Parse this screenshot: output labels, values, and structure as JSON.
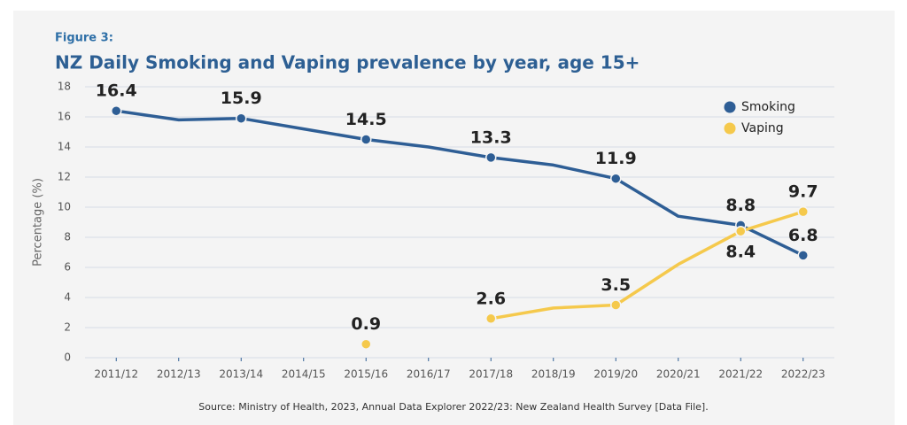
{
  "figure_label": "Figure 3:",
  "chart_data": {
    "type": "line",
    "title": "NZ Daily Smoking and Vaping prevalence by year, age 15+",
    "y_label": "Percentage (%)",
    "source": "Source: Ministry of Health, 2023, Annual Data Explorer 2022/23: New Zealand Health Survey [Data File].",
    "categories": [
      "2011/12",
      "2012/13",
      "2013/14",
      "2014/15",
      "2015/16",
      "2016/17",
      "2017/18",
      "2018/19",
      "2019/20",
      "2020/21",
      "2021/22",
      "2022/23"
    ],
    "series": [
      {
        "name": "Smoking",
        "color": "#2e5e95",
        "values": [
          16.4,
          15.8,
          15.9,
          15.2,
          14.5,
          14.0,
          13.3,
          12.8,
          11.9,
          9.4,
          8.8,
          6.8
        ],
        "value_labels": [
          "16.4",
          null,
          "15.9",
          null,
          "14.5",
          null,
          "13.3",
          null,
          "11.9",
          null,
          "8.8",
          "6.8"
        ]
      },
      {
        "name": "Vaping",
        "color": "#f5c94c",
        "values": [
          null,
          null,
          null,
          null,
          0.9,
          null,
          2.6,
          3.3,
          3.5,
          6.2,
          8.4,
          9.7
        ],
        "value_labels": [
          null,
          null,
          null,
          null,
          "0.9",
          null,
          "2.6",
          null,
          "3.5",
          null,
          "8.4",
          "9.7"
        ]
      }
    ],
    "ylim": [
      0,
      18
    ],
    "yticks": [
      0,
      2,
      4,
      6,
      8,
      10,
      12,
      14,
      16,
      18
    ],
    "grid": true,
    "legend": "top-right"
  }
}
